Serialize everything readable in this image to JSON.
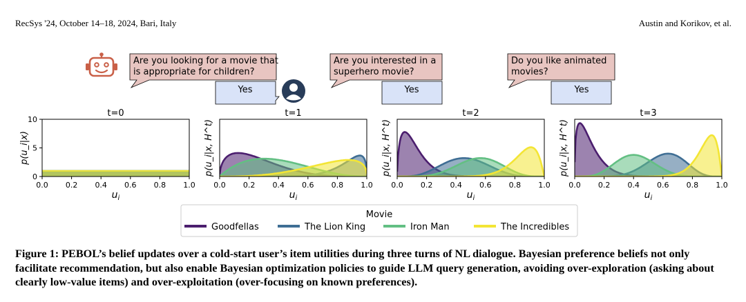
{
  "header": {
    "left": "RecSys '24, October 14–18, 2024, Bari, Italy",
    "right": "Austin and Korikov, et al."
  },
  "dialogue": [
    {
      "question_lines": [
        "Are you looking for a movie that",
        "is appropriate for children?"
      ],
      "answer": "Yes"
    },
    {
      "question_lines": [
        "Are you interested in a",
        "superhero movie?"
      ],
      "answer": "Yes"
    },
    {
      "question_lines": [
        "Do you like animated",
        "movies?"
      ],
      "answer": "Yes"
    }
  ],
  "icons": {
    "bot": "robot-icon",
    "user": "user-avatar-icon"
  },
  "colors": {
    "Goodfellas": "#4b1e6e",
    "The Lion King": "#3f6e94",
    "Iron Man": "#63bf83",
    "The Incredibles": "#f3e535",
    "bubble_question": "#e8c5c1",
    "bubble_answer": "#d9e3f8"
  },
  "chart_data": [
    {
      "type": "area",
      "title": "t=0",
      "xlabel": "u_i",
      "ylabel": "p(u_i|x)",
      "xlim": [
        0,
        1
      ],
      "ylim": [
        0,
        10
      ],
      "xticks": [
        "0.0",
        "0.2",
        "0.4",
        "0.6",
        "0.8",
        "1.0"
      ],
      "yticks": [
        "0",
        "5",
        "10"
      ],
      "series": [
        {
          "name": "Goodfellas",
          "distribution": "uniform",
          "value": 1.0
        },
        {
          "name": "The Lion King",
          "distribution": "uniform",
          "value": 1.0
        },
        {
          "name": "Iron Man",
          "distribution": "uniform",
          "value": 1.0
        },
        {
          "name": "The Incredibles",
          "distribution": "uniform",
          "value": 1.0
        }
      ]
    },
    {
      "type": "area",
      "title": "t=1",
      "xlabel": "u_i",
      "ylabel": "p(u_i|x, H^t)",
      "xlim": [
        0,
        1
      ],
      "xticks": [
        "0.0",
        "0.2",
        "0.4",
        "0.6",
        "0.8",
        "1.0"
      ],
      "series": [
        {
          "name": "Goodfellas",
          "beta": [
            1.5,
            4.5
          ],
          "peak": 3.7
        },
        {
          "name": "The Lion King",
          "beta": [
            9.0,
            1.4
          ],
          "peak": 3.3
        },
        {
          "name": "Iron Man",
          "beta": [
            2.0,
            3.3
          ],
          "peak": 2.8
        },
        {
          "name": "The Incredibles",
          "beta": [
            3.8,
            1.4
          ],
          "peak": 2.6
        }
      ]
    },
    {
      "type": "area",
      "title": "t=2",
      "xlabel": "u_i",
      "ylabel": "p(u_i|x, H^t)",
      "xlim": [
        0,
        1
      ],
      "xticks": [
        "0.0",
        "0.2",
        "0.4",
        "0.6",
        "0.8",
        "1.0"
      ],
      "series": [
        {
          "name": "Goodfellas",
          "beta": [
            1.6,
            12.0
          ],
          "peak": 7.0
        },
        {
          "name": "The Lion King",
          "beta": [
            5.0,
            5.8
          ],
          "peak": 2.9
        },
        {
          "name": "Iron Man",
          "beta": [
            6.5,
            5.2
          ],
          "peak": 2.9
        },
        {
          "name": "The Incredibles",
          "beta": [
            12.0,
            2.1
          ],
          "peak": 4.6
        }
      ]
    },
    {
      "type": "area",
      "title": "t=3",
      "xlabel": "u_i",
      "ylabel": "p(u_i|x, H^t)",
      "xlim": [
        0,
        1
      ],
      "xticks": [
        "0.0",
        "0.2",
        "0.4",
        "0.6",
        "0.8",
        "1.0"
      ],
      "series": [
        {
          "name": "Goodfellas",
          "beta": [
            1.4,
            12.0
          ],
          "peak": 8.4
        },
        {
          "name": "The Lion King",
          "beta": [
            9.0,
            5.6
          ],
          "peak": 3.6
        },
        {
          "name": "Iron Man",
          "beta": [
            6.0,
            8.5
          ],
          "peak": 3.4
        },
        {
          "name": "The Incredibles",
          "beta": [
            16.0,
            2.1
          ],
          "peak": 6.5
        }
      ]
    }
  ],
  "legend": {
    "title": "Movie",
    "items": [
      "Goodfellas",
      "The Lion King",
      "Iron Man",
      "The Incredibles"
    ]
  },
  "caption": "Figure 1: PEBOL’s belief updates over a cold-start user’s item utilities during three turns of NL dialogue. Bayesian preference beliefs not only facilitate recommendation, but also enable Bayesian optimization policies to guide LLM query generation, avoiding over-exploration (asking about clearly low-value items) and over-exploitation (over-focusing on known preferences)."
}
